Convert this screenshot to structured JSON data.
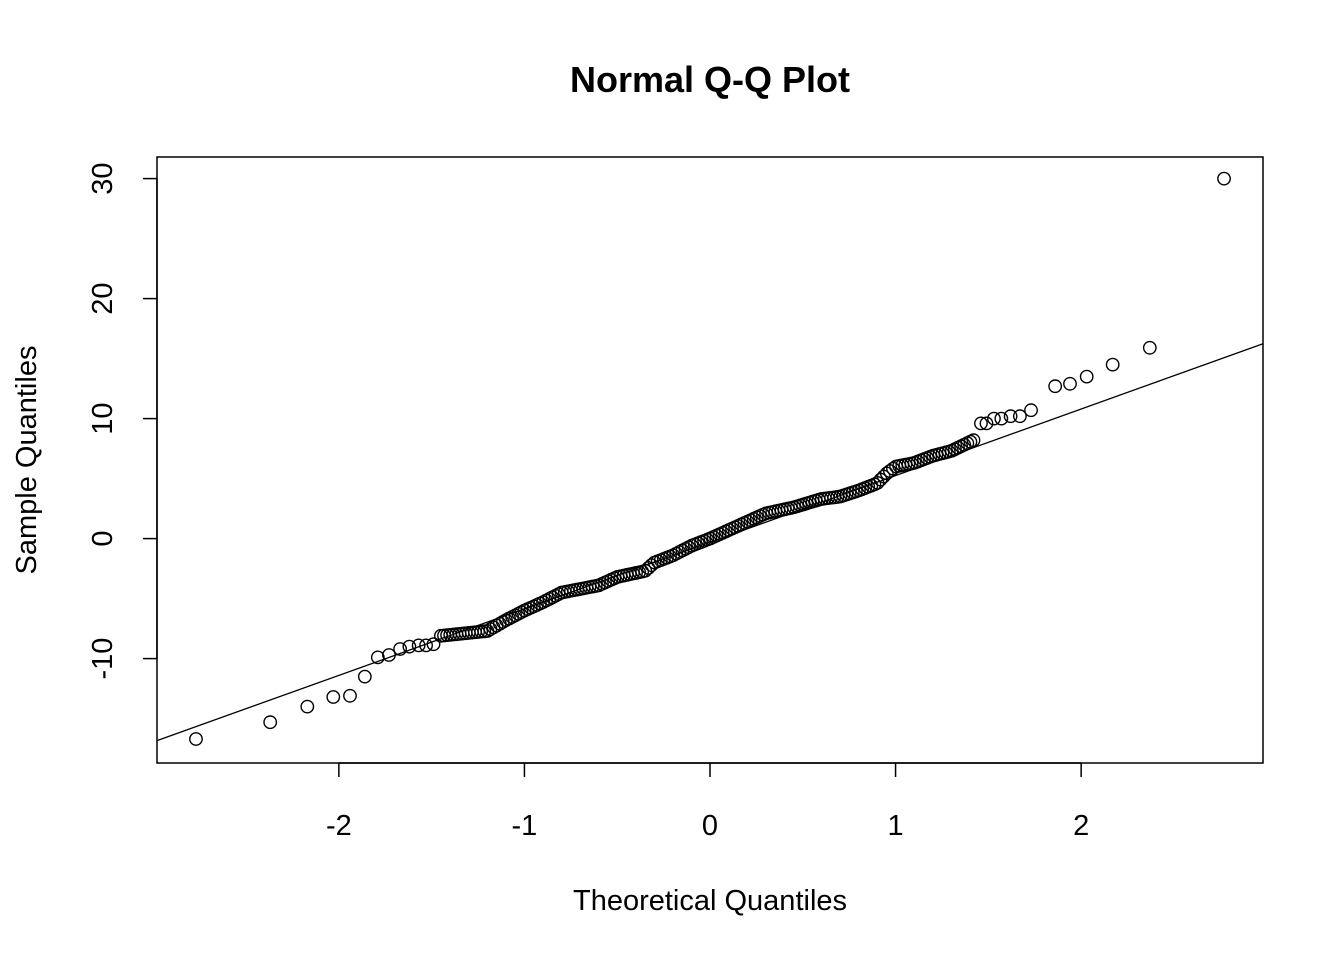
{
  "chart_data": {
    "type": "scatter",
    "title": "Normal Q-Q Plot",
    "xlabel": "Theoretical Quantiles",
    "ylabel": "Sample Quantiles",
    "xlim": [
      -2.98,
      2.98
    ],
    "ylim": [
      -18.7,
      31.8
    ],
    "x_ticks": [
      -2,
      -1,
      0,
      1,
      2
    ],
    "x_tick_labels": [
      "-2",
      "-1",
      "0",
      "1",
      "2"
    ],
    "y_ticks": [
      -10,
      0,
      10,
      20,
      30
    ],
    "y_tick_labels": [
      "-10",
      "0",
      "10",
      "20",
      "30"
    ],
    "grid": false,
    "reference_line": {
      "intercept": -0.3,
      "slope": 5.55
    },
    "points_tail_low": [
      [
        -2.77,
        -16.7
      ],
      [
        -2.37,
        -15.3
      ],
      [
        -2.17,
        -14.0
      ],
      [
        -2.03,
        -13.2
      ],
      [
        -1.94,
        -13.1
      ],
      [
        -1.86,
        -11.5
      ],
      [
        -1.79,
        -9.9
      ],
      [
        -1.73,
        -9.7
      ],
      [
        -1.67,
        -9.2
      ],
      [
        -1.62,
        -9.0
      ],
      [
        -1.57,
        -8.9
      ],
      [
        -1.53,
        -8.9
      ],
      [
        -1.49,
        -8.8
      ]
    ],
    "points_tail_high": [
      [
        1.46,
        9.6
      ],
      [
        1.49,
        9.6
      ],
      [
        1.53,
        10.0
      ],
      [
        1.57,
        10.0
      ],
      [
        1.62,
        10.2
      ],
      [
        1.67,
        10.2
      ],
      [
        1.73,
        10.7
      ],
      [
        1.86,
        12.7
      ],
      [
        1.94,
        12.9
      ],
      [
        2.03,
        13.5
      ],
      [
        2.17,
        14.5
      ],
      [
        2.37,
        15.9
      ],
      [
        2.77,
        30.0
      ]
    ],
    "quantile_profile": [
      [
        -1.45,
        -8.1
      ],
      [
        -1.2,
        -7.7
      ],
      [
        -1.1,
        -6.8
      ],
      [
        -1.0,
        -6.0
      ],
      [
        -0.9,
        -5.3
      ],
      [
        -0.8,
        -4.5
      ],
      [
        -0.6,
        -3.9
      ],
      [
        -0.5,
        -3.2
      ],
      [
        -0.35,
        -2.7
      ],
      [
        -0.3,
        -2.0
      ],
      [
        -0.2,
        -1.4
      ],
      [
        -0.1,
        -0.6
      ],
      [
        0.0,
        0.0
      ],
      [
        0.1,
        0.7
      ],
      [
        0.2,
        1.4
      ],
      [
        0.3,
        2.1
      ],
      [
        0.45,
        2.6
      ],
      [
        0.6,
        3.3
      ],
      [
        0.7,
        3.5
      ],
      [
        0.8,
        4.0
      ],
      [
        0.9,
        4.6
      ],
      [
        0.95,
        5.4
      ],
      [
        1.0,
        6.0
      ],
      [
        1.1,
        6.3
      ],
      [
        1.2,
        6.9
      ],
      [
        1.3,
        7.3
      ],
      [
        1.42,
        8.2
      ]
    ],
    "n_central_points": 173
  }
}
